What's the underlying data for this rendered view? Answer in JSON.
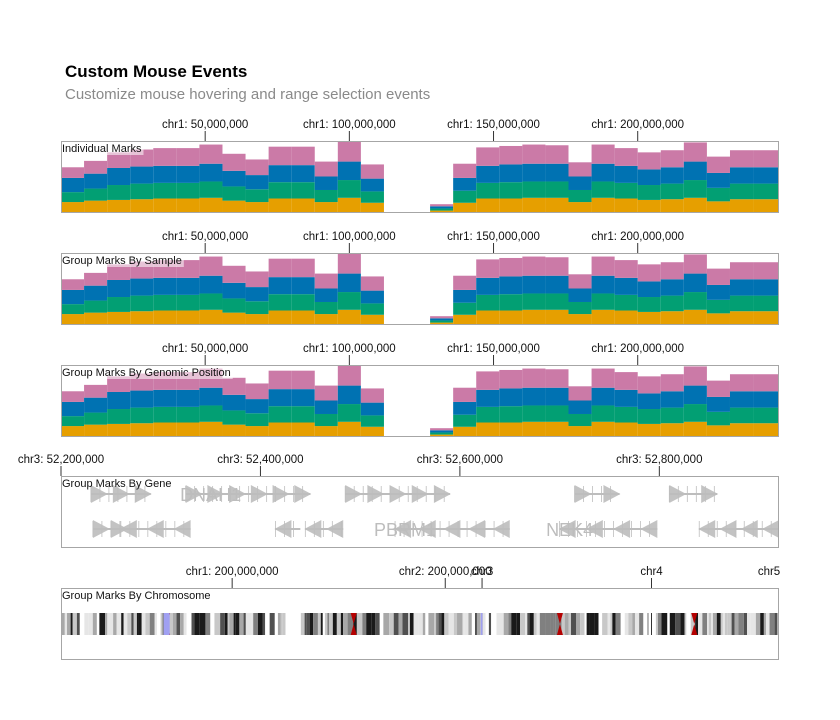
{
  "header": {
    "title": "Custom Mouse Events",
    "subtitle": "Customize mouse hovering and range selection events"
  },
  "colors": {
    "orange": "#e69f00",
    "green": "#029f73",
    "blue": "#0072b2",
    "pink": "#cb7aa7",
    "gene": "#bdbdbd",
    "gene_dark": "#9b9b9b",
    "cytoband_acen": "#b40000",
    "cytoband_gvar": "#a0a0f2",
    "frame": "#a6a6a6",
    "label_bg": "#f2d9e7"
  },
  "chart_data": [
    {
      "type": "area",
      "subtype": "stacked-bar",
      "title": "Individual Marks",
      "x_ticks": [
        "chr1: 50,000,000",
        "chr1: 100,000,000",
        "chr1: 150,000,000",
        "chr1: 200,000,000"
      ],
      "x_tick_values": [
        50000000,
        100000000,
        150000000,
        200000000
      ],
      "xlim": [
        0,
        249000000
      ],
      "series_names": [
        "orange",
        "green",
        "blue",
        "pink"
      ],
      "bins_start": [
        0,
        8000000,
        16000000,
        24000000,
        32000000,
        40000000,
        48000000,
        56000000,
        64000000,
        72000000,
        80000000,
        88000000,
        96000000,
        104000000,
        112000000,
        120000000,
        128000000,
        136000000,
        144000000,
        152000000,
        160000000,
        168000000,
        176000000,
        184000000,
        192000000,
        200000000,
        208000000,
        216000000,
        224000000,
        232000000,
        240000000
      ],
      "stack": [
        [
          0.14,
          0.28,
          0.48,
          0.63
        ],
        [
          0.16,
          0.33,
          0.54,
          0.72
        ],
        [
          0.17,
          0.38,
          0.62,
          0.84
        ],
        [
          0.18,
          0.4,
          0.64,
          0.88
        ],
        [
          0.19,
          0.41,
          0.65,
          0.9
        ],
        [
          0.19,
          0.41,
          0.65,
          0.9
        ],
        [
          0.2,
          0.43,
          0.68,
          0.95
        ],
        [
          0.16,
          0.36,
          0.58,
          0.82
        ],
        [
          0.14,
          0.32,
          0.52,
          0.74
        ],
        [
          0.19,
          0.42,
          0.66,
          0.92
        ],
        [
          0.19,
          0.42,
          0.66,
          0.92
        ],
        [
          0.14,
          0.31,
          0.5,
          0.71
        ],
        [
          0.2,
          0.45,
          0.71,
          1.0
        ],
        [
          0.13,
          0.29,
          0.47,
          0.67
        ],
        [
          0.0,
          0.0,
          0.0,
          0.0
        ],
        [
          0.0,
          0.0,
          0.0,
          0.0
        ],
        [
          0.02,
          0.05,
          0.08,
          0.11
        ],
        [
          0.13,
          0.3,
          0.48,
          0.68
        ],
        [
          0.19,
          0.41,
          0.65,
          0.91
        ],
        [
          0.19,
          0.42,
          0.67,
          0.93
        ],
        [
          0.2,
          0.43,
          0.68,
          0.95
        ],
        [
          0.2,
          0.43,
          0.68,
          0.94
        ],
        [
          0.14,
          0.31,
          0.5,
          0.7
        ],
        [
          0.2,
          0.43,
          0.68,
          0.95
        ],
        [
          0.19,
          0.41,
          0.65,
          0.9
        ],
        [
          0.17,
          0.38,
          0.6,
          0.84
        ],
        [
          0.18,
          0.4,
          0.63,
          0.87
        ],
        [
          0.2,
          0.45,
          0.71,
          0.98
        ],
        [
          0.15,
          0.34,
          0.55,
          0.78
        ],
        [
          0.18,
          0.4,
          0.63,
          0.87
        ],
        [
          0.18,
          0.4,
          0.63,
          0.87
        ]
      ],
      "ylim": [
        0,
        1
      ]
    },
    {
      "type": "area",
      "subtype": "stacked-bar",
      "title": "Group Marks By Sample",
      "x_ticks": [
        "chr1: 50,000,000",
        "chr1: 100,000,000",
        "chr1: 150,000,000",
        "chr1: 200,000,000"
      ],
      "same_data_as": "Individual Marks"
    },
    {
      "type": "area",
      "subtype": "stacked-bar",
      "title": "Group Marks By Genomic Position",
      "x_ticks": [
        "chr1: 50,000,000",
        "chr1: 100,000,000",
        "chr1: 150,000,000",
        "chr1: 200,000,000"
      ],
      "same_data_as": "Individual Marks"
    },
    {
      "type": "gene-annotation",
      "title": "Group Marks By Gene",
      "x_ticks": [
        "chr3: 52,200,000",
        "chr3: 52,400,000",
        "chr3: 52,600,000",
        "chr3: 52,800,000"
      ],
      "x_tick_values": [
        52200000,
        52400000,
        52600000,
        52800000
      ],
      "xlim": [
        52200000,
        52920000
      ],
      "gene_labels": [
        {
          "name": "DNAH1",
          "position": 52350000,
          "row": 0
        },
        {
          "name": "PBRM1",
          "position": 52545000,
          "row": 1
        },
        {
          "name": "NEK4",
          "position": 52710000,
          "row": 1
        }
      ],
      "genes": [
        {
          "start": 52230000,
          "end": 52290000,
          "row": 0,
          "strand": "+"
        },
        {
          "start": 52325000,
          "end": 52450000,
          "row": 0,
          "strand": "+"
        },
        {
          "start": 52485000,
          "end": 52590000,
          "row": 0,
          "strand": "+"
        },
        {
          "start": 52715000,
          "end": 52760000,
          "row": 0,
          "strand": "+"
        },
        {
          "start": 52810000,
          "end": 52858000,
          "row": 0,
          "strand": "+"
        },
        {
          "start": 52232000,
          "end": 52266000,
          "row": 1,
          "strand": "+"
        },
        {
          "start": 52260000,
          "end": 52330000,
          "row": 1,
          "strand": "-"
        },
        {
          "start": 52415000,
          "end": 52440000,
          "row": 1,
          "strand": "-"
        },
        {
          "start": 52445000,
          "end": 52483000,
          "row": 1,
          "strand": "-"
        },
        {
          "start": 52535000,
          "end": 52650000,
          "row": 1,
          "strand": "-"
        },
        {
          "start": 52700000,
          "end": 52798000,
          "row": 1,
          "strand": "-"
        },
        {
          "start": 52840000,
          "end": 52920000,
          "row": 1,
          "strand": "-"
        }
      ]
    },
    {
      "type": "ideogram",
      "title": "Group Marks By Chromosome",
      "x_ticks": [
        "chr1: 200,000,000",
        "chr2: 200,000,000",
        "chr3",
        "chr4",
        "chr5"
      ],
      "chromosomes": [
        {
          "name": "chr1",
          "length": 249000000,
          "centromere": 124000000
        },
        {
          "name": "chr2",
          "length": 243000000,
          "centromere": 93000000
        },
        {
          "name": "chr3",
          "length": 198000000,
          "centromere": 91000000
        },
        {
          "name": "chr4",
          "length": 191000000,
          "centromere": 50000000
        },
        {
          "name": "chr5",
          "length": 181000000,
          "centromere": 48000000
        }
      ]
    }
  ]
}
